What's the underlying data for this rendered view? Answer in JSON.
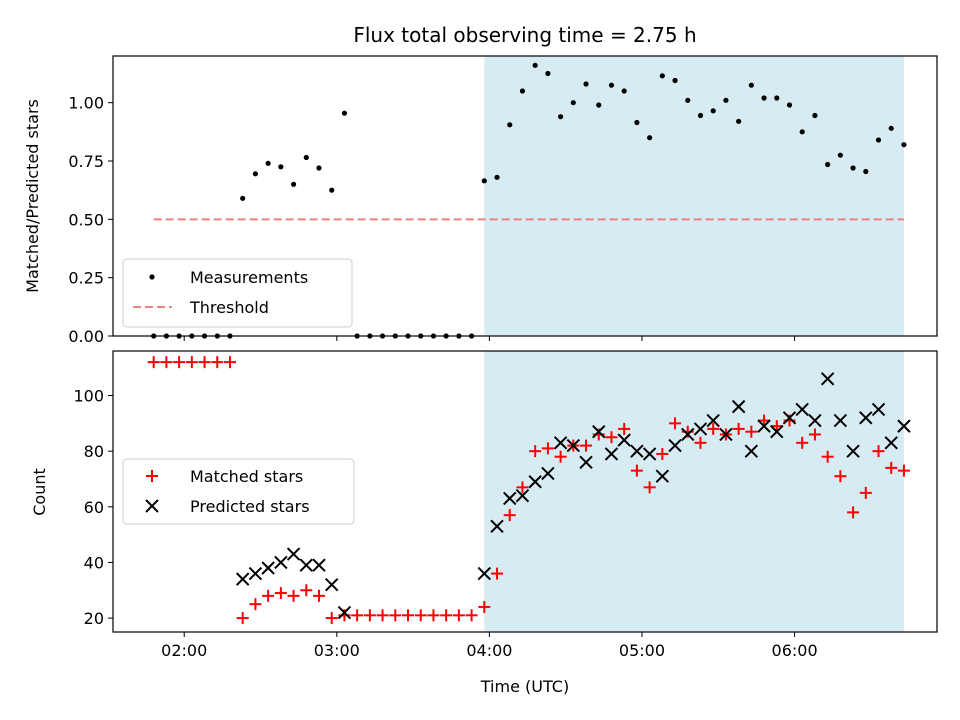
{
  "chart_data": [
    {
      "type": "scatter",
      "title": "Flux total observing time = 2.75 h",
      "xlabel": "",
      "ylabel": "Matched/Predicted stars",
      "xlim": [
        "01:32",
        "06:56"
      ],
      "ylim": [
        0,
        1.2
      ],
      "yticks": [
        "0.00",
        "0.25",
        "0.50",
        "0.75",
        "1.00"
      ],
      "highlight_span": {
        "start": "03:58",
        "end": "06:43",
        "color": "#add8e6"
      },
      "legend_position": "lower-left",
      "grid": false,
      "series": [
        {
          "name": "Measurements",
          "marker": "dot",
          "color": "#000000",
          "points": [
            [
              "01:48",
              0
            ],
            [
              "01:53",
              0
            ],
            [
              "01:58",
              0
            ],
            [
              "02:03",
              0
            ],
            [
              "02:08",
              0
            ],
            [
              "02:13",
              0
            ],
            [
              "02:18",
              0
            ],
            [
              "02:23",
              0.59
            ],
            [
              "02:28",
              0.695
            ],
            [
              "02:33",
              0.74
            ],
            [
              "02:38",
              0.725
            ],
            [
              "02:43",
              0.65
            ],
            [
              "02:48",
              0.765
            ],
            [
              "02:53",
              0.72
            ],
            [
              "02:58",
              0.625
            ],
            [
              "03:03",
              0.955
            ],
            [
              "03:08",
              0
            ],
            [
              "03:13",
              0
            ],
            [
              "03:18",
              0
            ],
            [
              "03:23",
              0
            ],
            [
              "03:28",
              0
            ],
            [
              "03:33",
              0
            ],
            [
              "03:38",
              0
            ],
            [
              "03:43",
              0
            ],
            [
              "03:48",
              0
            ],
            [
              "03:53",
              0
            ],
            [
              "03:58",
              0.665
            ],
            [
              "04:03",
              0.68
            ],
            [
              "04:08",
              0.905
            ],
            [
              "04:13",
              1.05
            ],
            [
              "04:18",
              1.16
            ],
            [
              "04:23",
              1.125
            ],
            [
              "04:28",
              0.94
            ],
            [
              "04:33",
              1.0
            ],
            [
              "04:38",
              1.08
            ],
            [
              "04:43",
              0.99
            ],
            [
              "04:48",
              1.075
            ],
            [
              "04:53",
              1.05
            ],
            [
              "04:58",
              0.915
            ],
            [
              "05:03",
              0.85
            ],
            [
              "05:08",
              1.115
            ],
            [
              "05:13",
              1.095
            ],
            [
              "05:18",
              1.01
            ],
            [
              "05:23",
              0.945
            ],
            [
              "05:28",
              0.965
            ],
            [
              "05:33",
              1.01
            ],
            [
              "05:38",
              0.92
            ],
            [
              "05:43",
              1.075
            ],
            [
              "05:48",
              1.02
            ],
            [
              "05:53",
              1.02
            ],
            [
              "05:58",
              0.99
            ],
            [
              "06:03",
              0.875
            ],
            [
              "06:08",
              0.945
            ],
            [
              "06:13",
              0.735
            ],
            [
              "06:18",
              0.775
            ],
            [
              "06:23",
              0.72
            ],
            [
              "06:28",
              0.705
            ],
            [
              "06:33",
              0.84
            ],
            [
              "06:38",
              0.89
            ],
            [
              "06:43",
              0.82
            ]
          ]
        },
        {
          "name": "Threshold",
          "marker": "dashed-line",
          "color": "#f08080",
          "points": [
            [
              "01:48",
              0.5
            ],
            [
              "06:43",
              0.5
            ]
          ]
        }
      ]
    },
    {
      "type": "scatter",
      "title": "",
      "xlabel": "Time (UTC)",
      "ylabel": "Count",
      "xlim": [
        "01:32",
        "06:56"
      ],
      "ylim": [
        15,
        116
      ],
      "yticks": [
        "20",
        "40",
        "60",
        "80",
        "100"
      ],
      "xticks": [
        "02:00",
        "03:00",
        "04:00",
        "05:00",
        "06:00"
      ],
      "highlight_span": {
        "start": "03:58",
        "end": "06:43",
        "color": "#add8e6"
      },
      "legend_position": "center-left",
      "grid": false,
      "series": [
        {
          "name": "Matched stars",
          "marker": "plus",
          "color": "#ff0000",
          "points": [
            [
              "01:48",
              112
            ],
            [
              "01:53",
              112
            ],
            [
              "01:58",
              112
            ],
            [
              "02:03",
              112
            ],
            [
              "02:08",
              112
            ],
            [
              "02:13",
              112
            ],
            [
              "02:18",
              112
            ],
            [
              "02:23",
              20
            ],
            [
              "02:28",
              25
            ],
            [
              "02:33",
              28
            ],
            [
              "02:38",
              29
            ],
            [
              "02:43",
              28
            ],
            [
              "02:48",
              30
            ],
            [
              "02:53",
              28
            ],
            [
              "02:58",
              20
            ],
            [
              "03:03",
              21
            ],
            [
              "03:08",
              21
            ],
            [
              "03:13",
              21
            ],
            [
              "03:18",
              21
            ],
            [
              "03:23",
              21
            ],
            [
              "03:28",
              21
            ],
            [
              "03:33",
              21
            ],
            [
              "03:38",
              21
            ],
            [
              "03:43",
              21
            ],
            [
              "03:48",
              21
            ],
            [
              "03:53",
              21
            ],
            [
              "03:58",
              24
            ],
            [
              "04:03",
              36
            ],
            [
              "04:08",
              57
            ],
            [
              "04:13",
              67
            ],
            [
              "04:18",
              80
            ],
            [
              "04:23",
              81
            ],
            [
              "04:28",
              78
            ],
            [
              "04:33",
              82
            ],
            [
              "04:38",
              82
            ],
            [
              "04:43",
              86
            ],
            [
              "04:48",
              85
            ],
            [
              "04:53",
              88
            ],
            [
              "04:58",
              73
            ],
            [
              "05:03",
              67
            ],
            [
              "05:08",
              79
            ],
            [
              "05:13",
              90
            ],
            [
              "05:18",
              87
            ],
            [
              "05:23",
              83
            ],
            [
              "05:28",
              88
            ],
            [
              "05:33",
              86
            ],
            [
              "05:38",
              88
            ],
            [
              "05:43",
              87
            ],
            [
              "05:48",
              91
            ],
            [
              "05:53",
              89
            ],
            [
              "05:58",
              91
            ],
            [
              "06:03",
              83
            ],
            [
              "06:08",
              86
            ],
            [
              "06:13",
              78
            ],
            [
              "06:18",
              71
            ],
            [
              "06:23",
              58
            ],
            [
              "06:28",
              65
            ],
            [
              "06:33",
              80
            ],
            [
              "06:38",
              74
            ],
            [
              "06:43",
              73
            ]
          ]
        },
        {
          "name": "Predicted stars",
          "marker": "x",
          "color": "#000000",
          "points": [
            [
              "02:23",
              34
            ],
            [
              "02:28",
              36
            ],
            [
              "02:33",
              38
            ],
            [
              "02:38",
              40
            ],
            [
              "02:43",
              43
            ],
            [
              "02:48",
              39
            ],
            [
              "02:53",
              39
            ],
            [
              "02:58",
              32
            ],
            [
              "03:03",
              22
            ],
            [
              "03:58",
              36
            ],
            [
              "04:03",
              53
            ],
            [
              "04:08",
              63
            ],
            [
              "04:13",
              64
            ],
            [
              "04:18",
              69
            ],
            [
              "04:23",
              72
            ],
            [
              "04:28",
              83
            ],
            [
              "04:33",
              82
            ],
            [
              "04:38",
              76
            ],
            [
              "04:43",
              87
            ],
            [
              "04:48",
              79
            ],
            [
              "04:53",
              84
            ],
            [
              "04:58",
              80
            ],
            [
              "05:03",
              79
            ],
            [
              "05:08",
              71
            ],
            [
              "05:13",
              82
            ],
            [
              "05:18",
              86
            ],
            [
              "05:23",
              88
            ],
            [
              "05:28",
              91
            ],
            [
              "05:33",
              86
            ],
            [
              "05:38",
              96
            ],
            [
              "05:43",
              80
            ],
            [
              "05:48",
              89
            ],
            [
              "05:53",
              87
            ],
            [
              "05:58",
              92
            ],
            [
              "06:03",
              95
            ],
            [
              "06:08",
              91
            ],
            [
              "06:13",
              106
            ],
            [
              "06:18",
              91
            ],
            [
              "06:23",
              80
            ],
            [
              "06:28",
              92
            ],
            [
              "06:33",
              95
            ],
            [
              "06:38",
              83
            ],
            [
              "06:43",
              89
            ]
          ]
        }
      ]
    }
  ]
}
